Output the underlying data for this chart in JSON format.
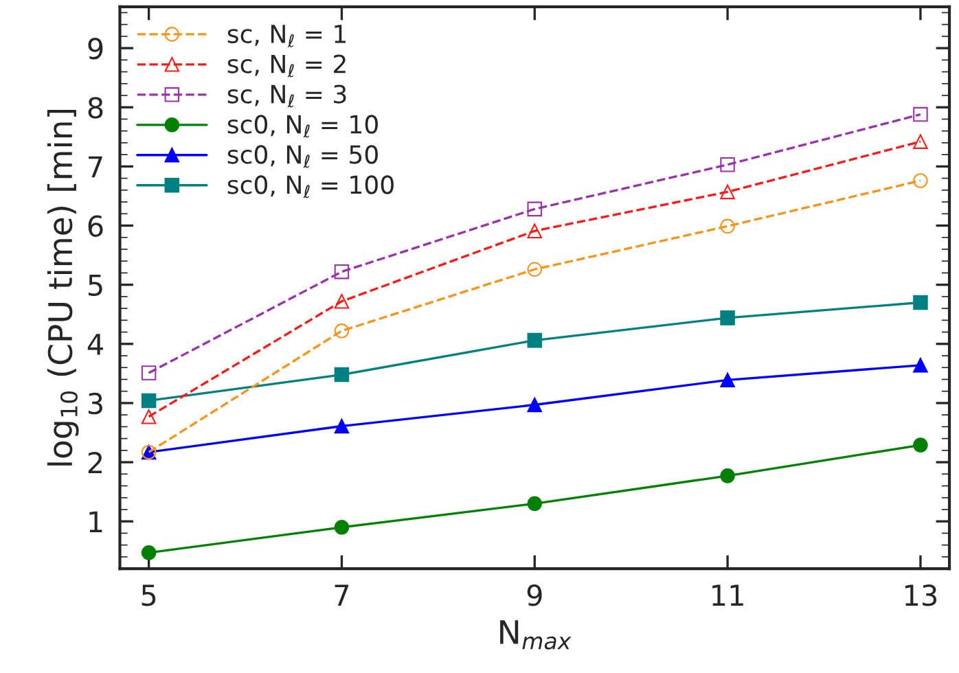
{
  "chart_data": {
    "type": "line",
    "xlabel": "N$_{max}$",
    "ylabel": "log$_{10}$ (CPU time) [min]",
    "x": [
      5,
      7,
      9,
      11,
      13
    ],
    "xlim": [
      4.7,
      13.3
    ],
    "xticks": [
      5,
      7,
      9,
      11,
      13
    ],
    "ylim": [
      0.2,
      9.7
    ],
    "yticks": [
      1,
      2,
      3,
      4,
      5,
      6,
      7,
      8,
      9
    ],
    "grid": false,
    "legend": "top left",
    "series": [
      {
        "name": "sc, N$_{ℓ}$ = 1",
        "color": "#f7941d",
        "marker": "circle",
        "line_style": "dashed",
        "values": [
          2.17,
          4.22,
          5.26,
          5.99,
          6.76
        ]
      },
      {
        "name": "sc, N$_{ℓ}$ = 2",
        "color": "#ff1a1a",
        "marker": "triangle",
        "line_style": "dashed",
        "values": [
          2.77,
          4.72,
          5.91,
          6.57,
          7.42
        ]
      },
      {
        "name": "sc, N$_{ℓ}$ = 3",
        "color": "#9933aa",
        "marker": "square",
        "line_style": "dashed",
        "values": [
          3.51,
          5.22,
          6.28,
          7.03,
          7.88
        ]
      },
      {
        "name": "sc0, N$_{ℓ}$ = 10",
        "color": "#008000",
        "marker": "circle",
        "line_style": "solid",
        "values": [
          0.47,
          0.9,
          1.3,
          1.77,
          2.29
        ]
      },
      {
        "name": "sc0, N$_{ℓ}$ = 50",
        "color": "#0000ff",
        "marker": "triangle",
        "line_style": "solid",
        "values": [
          2.17,
          2.61,
          2.97,
          3.39,
          3.64
        ]
      },
      {
        "name": "sc0, N$_{ℓ}$ = 100",
        "color": "#008080",
        "marker": "square",
        "line_style": "solid",
        "values": [
          3.04,
          3.48,
          4.06,
          4.44,
          4.7
        ]
      }
    ]
  }
}
